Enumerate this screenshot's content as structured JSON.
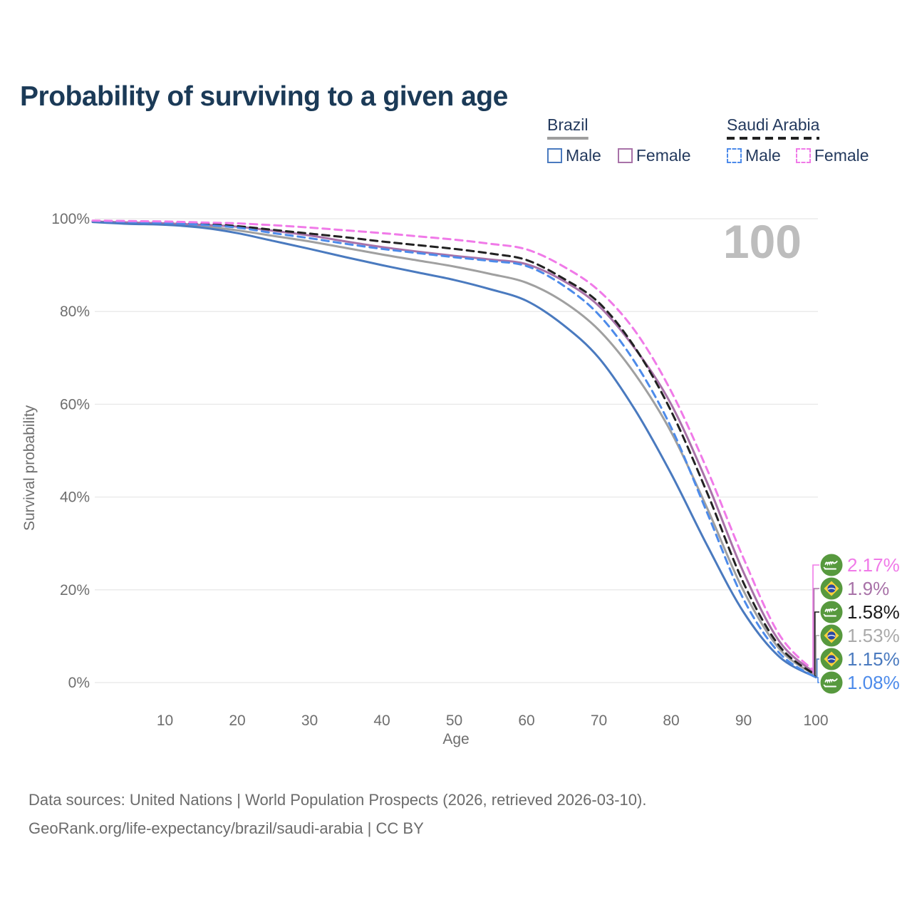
{
  "title": "Probability of surviving to a given age",
  "watermark": "100",
  "legend": {
    "groups": [
      {
        "label": "Brazil",
        "line_style": "solid",
        "line_color": "#9e9e9e",
        "items": [
          {
            "label": "Male",
            "color": "#4a7abf",
            "dashed": false
          },
          {
            "label": "Female",
            "color": "#a872a8",
            "dashed": false
          }
        ]
      },
      {
        "label": "Saudi Arabia",
        "line_style": "dashed",
        "line_color": "#222222",
        "items": [
          {
            "label": "Male",
            "color": "#4d8bea",
            "dashed": true
          },
          {
            "label": "Female",
            "color": "#f07ae8",
            "dashed": true
          }
        ]
      }
    ]
  },
  "chart_data": {
    "type": "line",
    "title": "Probability of surviving to a given age",
    "xlabel": "Age",
    "ylabel": "Survival probability",
    "xlim": [
      0,
      100
    ],
    "ylim": [
      0,
      100
    ],
    "grid": true,
    "legend_position": "top-right",
    "x_ticks": [
      10,
      20,
      30,
      40,
      50,
      60,
      70,
      80,
      90,
      100
    ],
    "y_ticks": [
      {
        "value": 0,
        "label": "0%"
      },
      {
        "value": 20,
        "label": "20%"
      },
      {
        "value": 40,
        "label": "40%"
      },
      {
        "value": 60,
        "label": "60%"
      },
      {
        "value": 80,
        "label": "80%"
      },
      {
        "value": 100,
        "label": "100%"
      }
    ],
    "x": [
      0,
      5,
      10,
      15,
      20,
      25,
      30,
      35,
      40,
      45,
      50,
      55,
      60,
      65,
      70,
      75,
      80,
      85,
      90,
      95,
      100
    ],
    "series": [
      {
        "key": "brazil_all",
        "name": "Brazil",
        "country": "Brazil",
        "sex": "Both",
        "color": "#a0a0a0",
        "dashed": false,
        "values": [
          99.4,
          99.1,
          98.9,
          98.4,
          97.5,
          96.3,
          95.1,
          93.7,
          92.3,
          91.0,
          89.7,
          88.1,
          86.2,
          82.2,
          76.0,
          66.5,
          54.0,
          37.5,
          19.8,
          7.2,
          1.53
        ]
      },
      {
        "key": "brazil_female",
        "name": "Brazil Female",
        "country": "Brazil",
        "sex": "Female",
        "color": "#a872a8",
        "dashed": false,
        "values": [
          99.4,
          99.2,
          99.0,
          98.7,
          98.3,
          97.4,
          96.4,
          95.1,
          93.9,
          92.9,
          92.0,
          91.2,
          90.2,
          86.7,
          81.2,
          72.0,
          60.0,
          43.0,
          23.8,
          8.8,
          1.9
        ]
      },
      {
        "key": "brazil_male",
        "name": "Brazil Male",
        "country": "Brazil",
        "sex": "Male",
        "color": "#4a7abf",
        "dashed": false,
        "values": [
          99.3,
          98.9,
          98.7,
          98.1,
          96.9,
          95.2,
          93.5,
          91.7,
          90.0,
          88.4,
          86.8,
          84.8,
          82.3,
          77.2,
          70.0,
          58.8,
          45.0,
          29.5,
          15.2,
          5.5,
          1.15
        ]
      },
      {
        "key": "saudi_all",
        "name": "Saudi Arabia",
        "country": "Saudi Arabia",
        "sex": "Both",
        "color": "#222222",
        "dashed": true,
        "values": [
          99.5,
          99.4,
          99.2,
          98.9,
          98.4,
          97.6,
          96.8,
          96.0,
          95.1,
          94.3,
          93.5,
          92.5,
          91.1,
          87.2,
          81.9,
          72.2,
          58.5,
          40.8,
          21.5,
          7.8,
          1.58
        ]
      },
      {
        "key": "saudi_male",
        "name": "Saudi Arabia Male",
        "country": "Saudi Arabia",
        "sex": "Male",
        "color": "#4d8bea",
        "dashed": true,
        "values": [
          99.5,
          99.3,
          99.1,
          98.7,
          98.1,
          96.9,
          95.8,
          94.6,
          93.5,
          92.6,
          91.7,
          90.9,
          89.8,
          85.7,
          79.3,
          69.0,
          55.0,
          36.5,
          18.0,
          6.3,
          1.08
        ]
      },
      {
        "key": "saudi_female",
        "name": "Saudi Arabia Female",
        "country": "Saudi Arabia",
        "sex": "Female",
        "color": "#f07ae8",
        "dashed": true,
        "values": [
          99.6,
          99.5,
          99.4,
          99.2,
          99.0,
          98.6,
          98.1,
          97.5,
          96.9,
          96.2,
          95.5,
          94.6,
          93.4,
          89.8,
          84.5,
          75.8,
          62.8,
          45.8,
          26.8,
          10.2,
          2.17
        ]
      }
    ],
    "end_labels": [
      {
        "series_key": "saudi_female",
        "label": "2.17%",
        "color": "#f07ae8",
        "flag": "saudi-arabia"
      },
      {
        "series_key": "brazil_female",
        "label": "1.9%",
        "color": "#a872a8",
        "flag": "brazil"
      },
      {
        "series_key": "saudi_all",
        "label": "1.58%",
        "color": "#1a1a1a",
        "flag": "saudi-arabia"
      },
      {
        "series_key": "brazil_all",
        "label": "1.53%",
        "color": "#aaaaaa",
        "flag": "brazil"
      },
      {
        "series_key": "brazil_male",
        "label": "1.15%",
        "color": "#4a7abf",
        "flag": "brazil"
      },
      {
        "series_key": "saudi_male",
        "label": "1.08%",
        "color": "#4d8bea",
        "flag": "saudi-arabia"
      }
    ]
  },
  "footer": {
    "line1": "Data sources: United Nations | World Population Prospects (2026, retrieved 2026-03-10).",
    "line2": "GeoRank.org/life-expectancy/brazil/saudi-arabia | CC BY"
  }
}
